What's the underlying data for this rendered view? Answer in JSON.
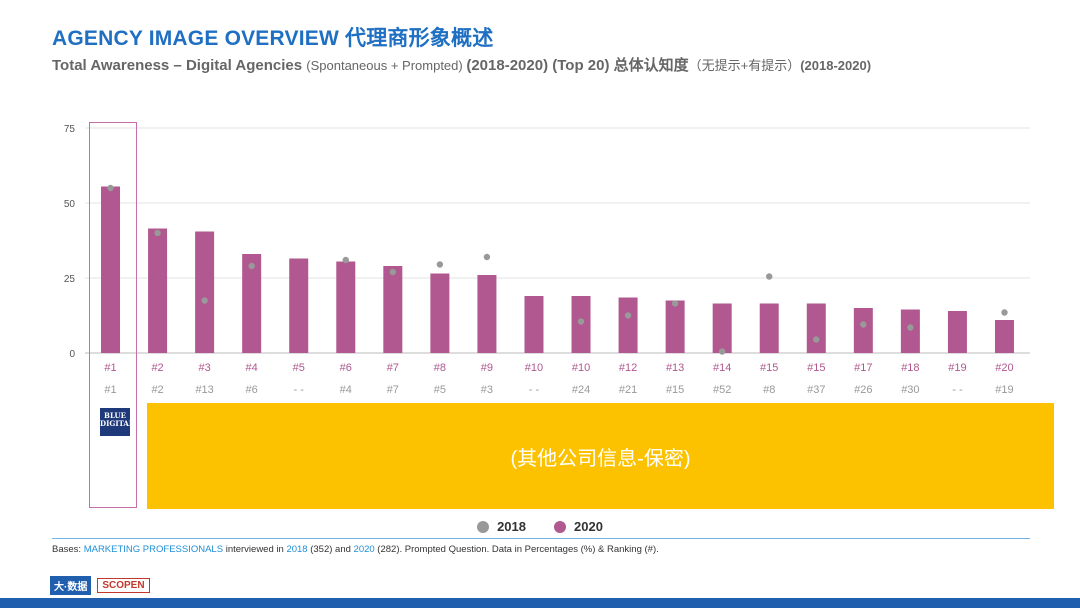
{
  "title": "AGENCY IMAGE OVERVIEW 代理商形象概述",
  "subtitle": {
    "main": "Total Awareness – Digital Agencies ",
    "paren": "(Spontaneous + Prompted) ",
    "rest": "(2018-2020) (Top 20) 总体认知度",
    "cn_paren": "（无提示+有提示）",
    "end": "(2018-2020)"
  },
  "logo_text": "BLUE DIGITAL",
  "redacted_text": "(其他公司信息-保密)",
  "legend": {
    "s2018": "2018",
    "s2020": "2020"
  },
  "bases": {
    "prefix": "Bases: ",
    "group": "MARKETING PROFESSIONALS",
    "mid1": " interviewed in ",
    "y2018": "2018",
    "mid2": " (352) and ",
    "y2020": "2020",
    "rest": " (282). Prompted Question. Data in Percentages (%) & Ranking (#)."
  },
  "footer": {
    "logo_a": "大·数据",
    "logo_b": "SCOPEN"
  },
  "colors": {
    "bar2020": "#b0588f",
    "dot2018": "#999999",
    "accent": "#1f6fc2",
    "redact": "#fcc200"
  },
  "chart_data": {
    "type": "bar",
    "title": "",
    "xlabel": "",
    "ylabel": "",
    "ylim": [
      0,
      75
    ],
    "yticks": [
      0,
      25,
      50,
      75
    ],
    "rank_2020": [
      "#1",
      "#2",
      "#3",
      "#4",
      "#5",
      "#6",
      "#7",
      "#8",
      "#9",
      "#10",
      "#10",
      "#12",
      "#13",
      "#14",
      "#15",
      "#15",
      "#17",
      "#18",
      "#19",
      "#20"
    ],
    "rank_2018": [
      "#1",
      "#2",
      "#13",
      "#6",
      "- -",
      "#4",
      "#7",
      "#5",
      "#3",
      "- -",
      "#24",
      "#21",
      "#15",
      "#52",
      "#8",
      "#37",
      "#26",
      "#30",
      "- -",
      "#19"
    ],
    "series": [
      {
        "name": "2020",
        "type": "bar",
        "values": [
          55.5,
          41.5,
          40.5,
          33,
          31.5,
          30.5,
          29,
          26.5,
          26,
          19,
          19,
          18.5,
          17.5,
          16.5,
          16.5,
          16.5,
          15,
          14.5,
          14,
          11
        ]
      },
      {
        "name": "2018",
        "type": "scatter",
        "values": [
          55,
          40,
          17.5,
          29,
          null,
          31,
          27,
          29.5,
          32,
          null,
          10.5,
          12.5,
          16.5,
          0.5,
          25.5,
          4.5,
          9.5,
          8.5,
          null,
          13.5
        ]
      }
    ],
    "grid": true,
    "legend_position": "bottom"
  }
}
